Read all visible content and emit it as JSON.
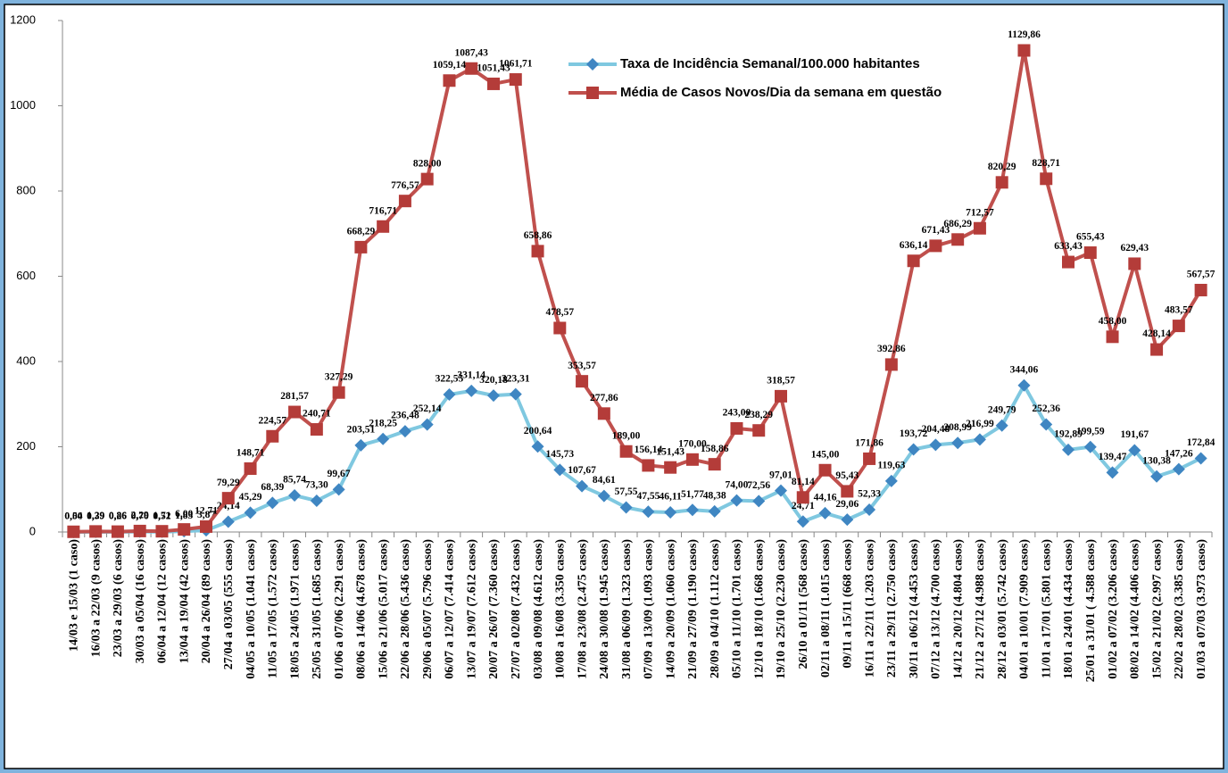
{
  "chart_data": {
    "type": "line",
    "categories": [
      "14/03 e 15/03 (1 caso)",
      "16/03 a 22/03 (9 casos)",
      "23/03 a 29/03 (6 casos)",
      "30/03 a 05/04 (16 casos)",
      "06/04 a 12/04 (12 casos)",
      "13/04 a 19/04 (42 casos)",
      "20/04 a 26/04 (89 casos)",
      "27/04 a 03/05 (555 casos)",
      "04/05 a 10/05 (1.041 casos)",
      "11/05 a 17/05 (1.572 casos)",
      "18/05 a 24/05 (1.971 casos)",
      "25/05 a 31/05 (1.685 casos)",
      "01/06 a 07/06 (2.291 casos)",
      "08/06 a 14/06 (4.678 casos)",
      "15/06 a 21/06 (5.017 casos)",
      "22/06 a 28/06 (5.436 casos)",
      "29/06 a 05/07 (5.796 casos)",
      "06/07 a 12/07 (7.414 casos)",
      "13/07 a 19/07 (7.612 casos)",
      "20/07 a 26/07 (7.360 casos)",
      "27/07 a 02/08 (7.432 casos)",
      "03/08 a 09/08 (4.612 casos)",
      "10/08 a 16/08 (3.350 casos)",
      "17/08 a 23/08 (2.475 casos)",
      "24/08 a 30/08 (1.945 casos)",
      "31/08 a 06/09 (1.323 casos)",
      "07/09 a 13/09 (1.093 casos)",
      "14/09 a 20/09 (1.060 casos)",
      "21/09 a 27/09 (1.190 casos)",
      "28/09 a 04/10 (1.112 casos)",
      "05/10 a 11/10 (1.701 casos)",
      "12/10 a 18/10 (1.668 casos)",
      "19/10 a 25/10 (2.230 casos)",
      "26/10 a 01/11 (568 casos)",
      "02/11 a 08/11 (1.015 casos)",
      "09/11 a 15/11 (668 casos)",
      "16/11 a 22/11 (1.203 casos)",
      "23/11 a 29/11 (2.750 casos)",
      "30/11 a 06/12 (4.453 casos)",
      "07/12 a 13/12 (4.700 casos)",
      "14/12 a 20/12 (4.804 casos)",
      "21/12 a 27/12 (4.988 casos)",
      "28/12 a 03/01 (5.742 casos)",
      "04/01 a 10/01 (7.909 casos)",
      "11/01 a 17/01 (5.801 casos)",
      "18/01 a 24/01 (4.434 casos)",
      "25/01 a 31/01 ( 4.588 casos)",
      "01/02 a 07/02 (3.206 casos)",
      "08/02 a 14/02 (4.406 casos)",
      "15/02 a 21/02 (2.997 casos)",
      "22/02 a 28/02 (3.385 casos)",
      "01/03 a 07/03 (3.973 casos)"
    ],
    "series": [
      {
        "name": "Taxa de Incidência Semanal/100.000 habitantes",
        "color": "#7fc8e0",
        "marker_color": "#3f86c2",
        "marker": "diamond",
        "values": [
          0.04,
          0.39,
          0.26,
          0.7,
          0.52,
          1.83,
          3.87,
          24.14,
          45.29,
          68.39,
          85.74,
          73.3,
          99.67,
          203.51,
          218.25,
          236.48,
          252.14,
          322.55,
          331.14,
          320.18,
          323.31,
          200.64,
          145.73,
          107.67,
          84.61,
          57.55,
          47.55,
          46.11,
          51.77,
          48.38,
          74.0,
          72.56,
          97.01,
          24.71,
          44.16,
          29.06,
          52.33,
          119.63,
          193.72,
          204.48,
          208.99,
          216.99,
          249.79,
          344.06,
          252.36,
          192.89,
          199.59,
          139.47,
          191.67,
          130.38,
          147.26,
          172.84
        ],
        "value_labels": [
          "0,04",
          "0,39",
          "0,26",
          "0,70",
          "0,52",
          "1,83",
          "3,87",
          "24,14",
          "45,29",
          "68,39",
          "85,74",
          "73,30",
          "99,67",
          "203,51",
          "218,25",
          "236,48",
          "252,14",
          "322,55",
          "331,14",
          "320,18",
          "323,31",
          "200,64",
          "145,73",
          "107,67",
          "84,61",
          "57,55",
          "47,55",
          "46,11",
          "51,77",
          "48,38",
          "74,00",
          "72,56",
          "97,01",
          "24,71",
          "44,16",
          "29,06",
          "52,33",
          "119,63",
          "193,72",
          "204,48",
          "208,99",
          "216,99",
          "249,79",
          "344,06",
          "252,36",
          "192,89",
          "199,59",
          "139,47",
          "191,67",
          "130,38",
          "147,26",
          "172,84"
        ]
      },
      {
        "name": "Média de Casos Novos/Dia da semana em questão",
        "color": "#c0504d",
        "marker_color": "#b43c39",
        "marker": "square",
        "values": [
          0.5,
          1.29,
          0.86,
          2.29,
          1.71,
          6.0,
          12.71,
          79.29,
          148.71,
          224.57,
          281.57,
          240.71,
          327.29,
          668.29,
          716.71,
          776.57,
          828.0,
          1059.14,
          1087.43,
          1051.43,
          1061.71,
          658.86,
          478.57,
          353.57,
          277.86,
          189.0,
          156.14,
          151.43,
          170.0,
          158.86,
          243.0,
          238.29,
          318.57,
          81.14,
          145.0,
          95.43,
          171.86,
          392.86,
          636.14,
          671.43,
          686.29,
          712.57,
          820.29,
          1129.86,
          828.71,
          633.43,
          655.43,
          458.0,
          629.43,
          428.14,
          483.57,
          567.57
        ],
        "value_labels": [
          "0,50",
          "1,29",
          "0,86",
          "2,29",
          "1,71",
          "6,00",
          "12,71",
          "79,29",
          "148,71",
          "224,57",
          "281,57",
          "240,71",
          "327,29",
          "668,29",
          "716,71",
          "776,57",
          "828,00",
          "1059,14",
          "1087,43",
          "1051,43",
          "1061,71",
          "658,86",
          "478,57",
          "353,57",
          "277,86",
          "189,00",
          "156,14",
          "151,43",
          "170,00",
          "158,86",
          "243,00",
          "238,29",
          "318,57",
          "81,14",
          "145,00",
          "95,43",
          "171,86",
          "392,86",
          "636,14",
          "671,43",
          "686,29",
          "712,57",
          "820,29",
          "1129,86",
          "828,71",
          "633,43",
          "655,43",
          "458,00",
          "629,43",
          "428,14",
          "483,57",
          "567,57"
        ]
      }
    ],
    "ylim": [
      0,
      1200
    ],
    "yticks": [
      0,
      200,
      400,
      600,
      800,
      1000,
      1200
    ],
    "grid": false,
    "legend": "top"
  }
}
